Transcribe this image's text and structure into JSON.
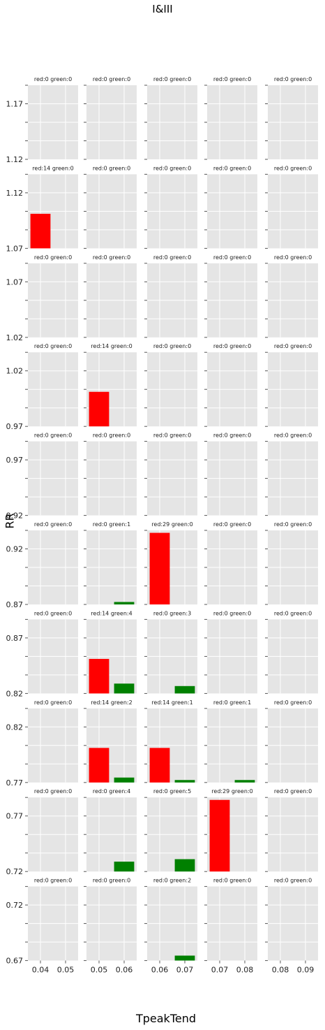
{
  "chart_data": {
    "type": "bar",
    "title": "I&III",
    "xlabel": "TpeakTend",
    "ylabel": "RR",
    "grid": true,
    "colors": {
      "red": "#ff0000",
      "green": "#008000",
      "panel_bg": "#e5e5e5",
      "grid": "#ffffff"
    },
    "count_scale_max": 30,
    "columns": [
      {
        "xlim": [
          0.035,
          0.055
        ],
        "xticks": [
          "0.04",
          "0.05"
        ],
        "red_x": 0.04,
        "green_x": 0.05
      },
      {
        "xlim": [
          0.045,
          0.065
        ],
        "xticks": [
          "0.05",
          "0.06"
        ],
        "red_x": 0.05,
        "green_x": 0.06
      },
      {
        "xlim": [
          0.055,
          0.075
        ],
        "xticks": [
          "0.06",
          "0.07"
        ],
        "red_x": 0.06,
        "green_x": 0.07
      },
      {
        "xlim": [
          0.065,
          0.085
        ],
        "xticks": [
          "0.07",
          "0.08"
        ],
        "red_x": 0.07,
        "green_x": 0.08
      },
      {
        "xlim": [
          0.075,
          0.095
        ],
        "xticks": [
          "0.08",
          "0.09"
        ],
        "red_x": 0.08,
        "green_x": 0.09
      }
    ],
    "rows": [
      {
        "ylim": [
          1.12,
          1.17
        ],
        "yticks": [
          "1.17",
          "1.12"
        ],
        "panels": [
          {
            "label": "red:0 green:0",
            "red": 0,
            "green": 0
          },
          {
            "label": "red:0 green:0",
            "red": 0,
            "green": 0
          },
          {
            "label": "red:0 green:0",
            "red": 0,
            "green": 0
          },
          {
            "label": "red:0 green:0",
            "red": 0,
            "green": 0
          },
          {
            "label": "red:0 green:0",
            "red": 0,
            "green": 0
          }
        ]
      },
      {
        "ylim": [
          1.07,
          1.12
        ],
        "yticks": [
          "1.12",
          "1.07"
        ],
        "panels": [
          {
            "label": "red:14 green:0",
            "red": 14,
            "green": 0
          },
          {
            "label": "red:0 green:0",
            "red": 0,
            "green": 0
          },
          {
            "label": "red:0 green:0",
            "red": 0,
            "green": 0
          },
          {
            "label": "red:0 green:0",
            "red": 0,
            "green": 0
          },
          {
            "label": "red:0 green:0",
            "red": 0,
            "green": 0
          }
        ]
      },
      {
        "ylim": [
          1.02,
          1.07
        ],
        "yticks": [
          "1.07",
          "1.02"
        ],
        "panels": [
          {
            "label": "red:0 green:0",
            "red": 0,
            "green": 0
          },
          {
            "label": "red:0 green:0",
            "red": 0,
            "green": 0
          },
          {
            "label": "red:0 green:0",
            "red": 0,
            "green": 0
          },
          {
            "label": "red:0 green:0",
            "red": 0,
            "green": 0
          },
          {
            "label": "red:0 green:0",
            "red": 0,
            "green": 0
          }
        ]
      },
      {
        "ylim": [
          0.97,
          1.02
        ],
        "yticks": [
          "1.02",
          "0.97"
        ],
        "panels": [
          {
            "label": "red:0 green:0",
            "red": 0,
            "green": 0
          },
          {
            "label": "red:14 green:0",
            "red": 14,
            "green": 0
          },
          {
            "label": "red:0 green:0",
            "red": 0,
            "green": 0
          },
          {
            "label": "red:0 green:0",
            "red": 0,
            "green": 0
          },
          {
            "label": "red:0 green:0",
            "red": 0,
            "green": 0
          }
        ]
      },
      {
        "ylim": [
          0.92,
          0.97
        ],
        "yticks": [
          "0.97",
          "0.92"
        ],
        "panels": [
          {
            "label": "red:0 green:0",
            "red": 0,
            "green": 0
          },
          {
            "label": "red:0 green:0",
            "red": 0,
            "green": 0
          },
          {
            "label": "red:0 green:0",
            "red": 0,
            "green": 0
          },
          {
            "label": "red:0 green:0",
            "red": 0,
            "green": 0
          },
          {
            "label": "red:0 green:0",
            "red": 0,
            "green": 0
          }
        ]
      },
      {
        "ylim": [
          0.87,
          0.92
        ],
        "yticks": [
          "0.92",
          "0.87"
        ],
        "panels": [
          {
            "label": "red:0 green:0",
            "red": 0,
            "green": 0
          },
          {
            "label": "red:0 green:1",
            "red": 0,
            "green": 1
          },
          {
            "label": "red:29 green:0",
            "red": 29,
            "green": 0
          },
          {
            "label": "red:0 green:0",
            "red": 0,
            "green": 0
          },
          {
            "label": "red:0 green:0",
            "red": 0,
            "green": 0
          }
        ]
      },
      {
        "ylim": [
          0.82,
          0.87
        ],
        "yticks": [
          "0.87",
          "0.82"
        ],
        "panels": [
          {
            "label": "red:0 green:0",
            "red": 0,
            "green": 0
          },
          {
            "label": "red:14 green:4",
            "red": 14,
            "green": 4
          },
          {
            "label": "red:0 green:3",
            "red": 0,
            "green": 3
          },
          {
            "label": "red:0 green:0",
            "red": 0,
            "green": 0
          },
          {
            "label": "red:0 green:0",
            "red": 0,
            "green": 0
          }
        ]
      },
      {
        "ylim": [
          0.77,
          0.82
        ],
        "yticks": [
          "0.82",
          "0.77"
        ],
        "panels": [
          {
            "label": "red:0 green:0",
            "red": 0,
            "green": 0
          },
          {
            "label": "red:14 green:2",
            "red": 14,
            "green": 2
          },
          {
            "label": "red:14 green:1",
            "red": 14,
            "green": 1
          },
          {
            "label": "red:0 green:1",
            "red": 0,
            "green": 1
          },
          {
            "label": "red:0 green:0",
            "red": 0,
            "green": 0
          }
        ]
      },
      {
        "ylim": [
          0.72,
          0.77
        ],
        "yticks": [
          "0.77",
          "0.72"
        ],
        "panels": [
          {
            "label": "red:0 green:0",
            "red": 0,
            "green": 0
          },
          {
            "label": "red:0 green:4",
            "red": 0,
            "green": 4
          },
          {
            "label": "red:0 green:5",
            "red": 0,
            "green": 5
          },
          {
            "label": "red:29 green:0",
            "red": 29,
            "green": 0
          },
          {
            "label": "red:0 green:0",
            "red": 0,
            "green": 0
          }
        ]
      },
      {
        "ylim": [
          0.67,
          0.72
        ],
        "yticks": [
          "0.72",
          "0.67"
        ],
        "panels": [
          {
            "label": "red:0 green:0",
            "red": 0,
            "green": 0
          },
          {
            "label": "red:0 green:0",
            "red": 0,
            "green": 0
          },
          {
            "label": "red:0 green:2",
            "red": 0,
            "green": 2
          },
          {
            "label": "red:0 green:0",
            "red": 0,
            "green": 0
          },
          {
            "label": "red:0 green:0",
            "red": 0,
            "green": 0
          }
        ]
      }
    ]
  }
}
